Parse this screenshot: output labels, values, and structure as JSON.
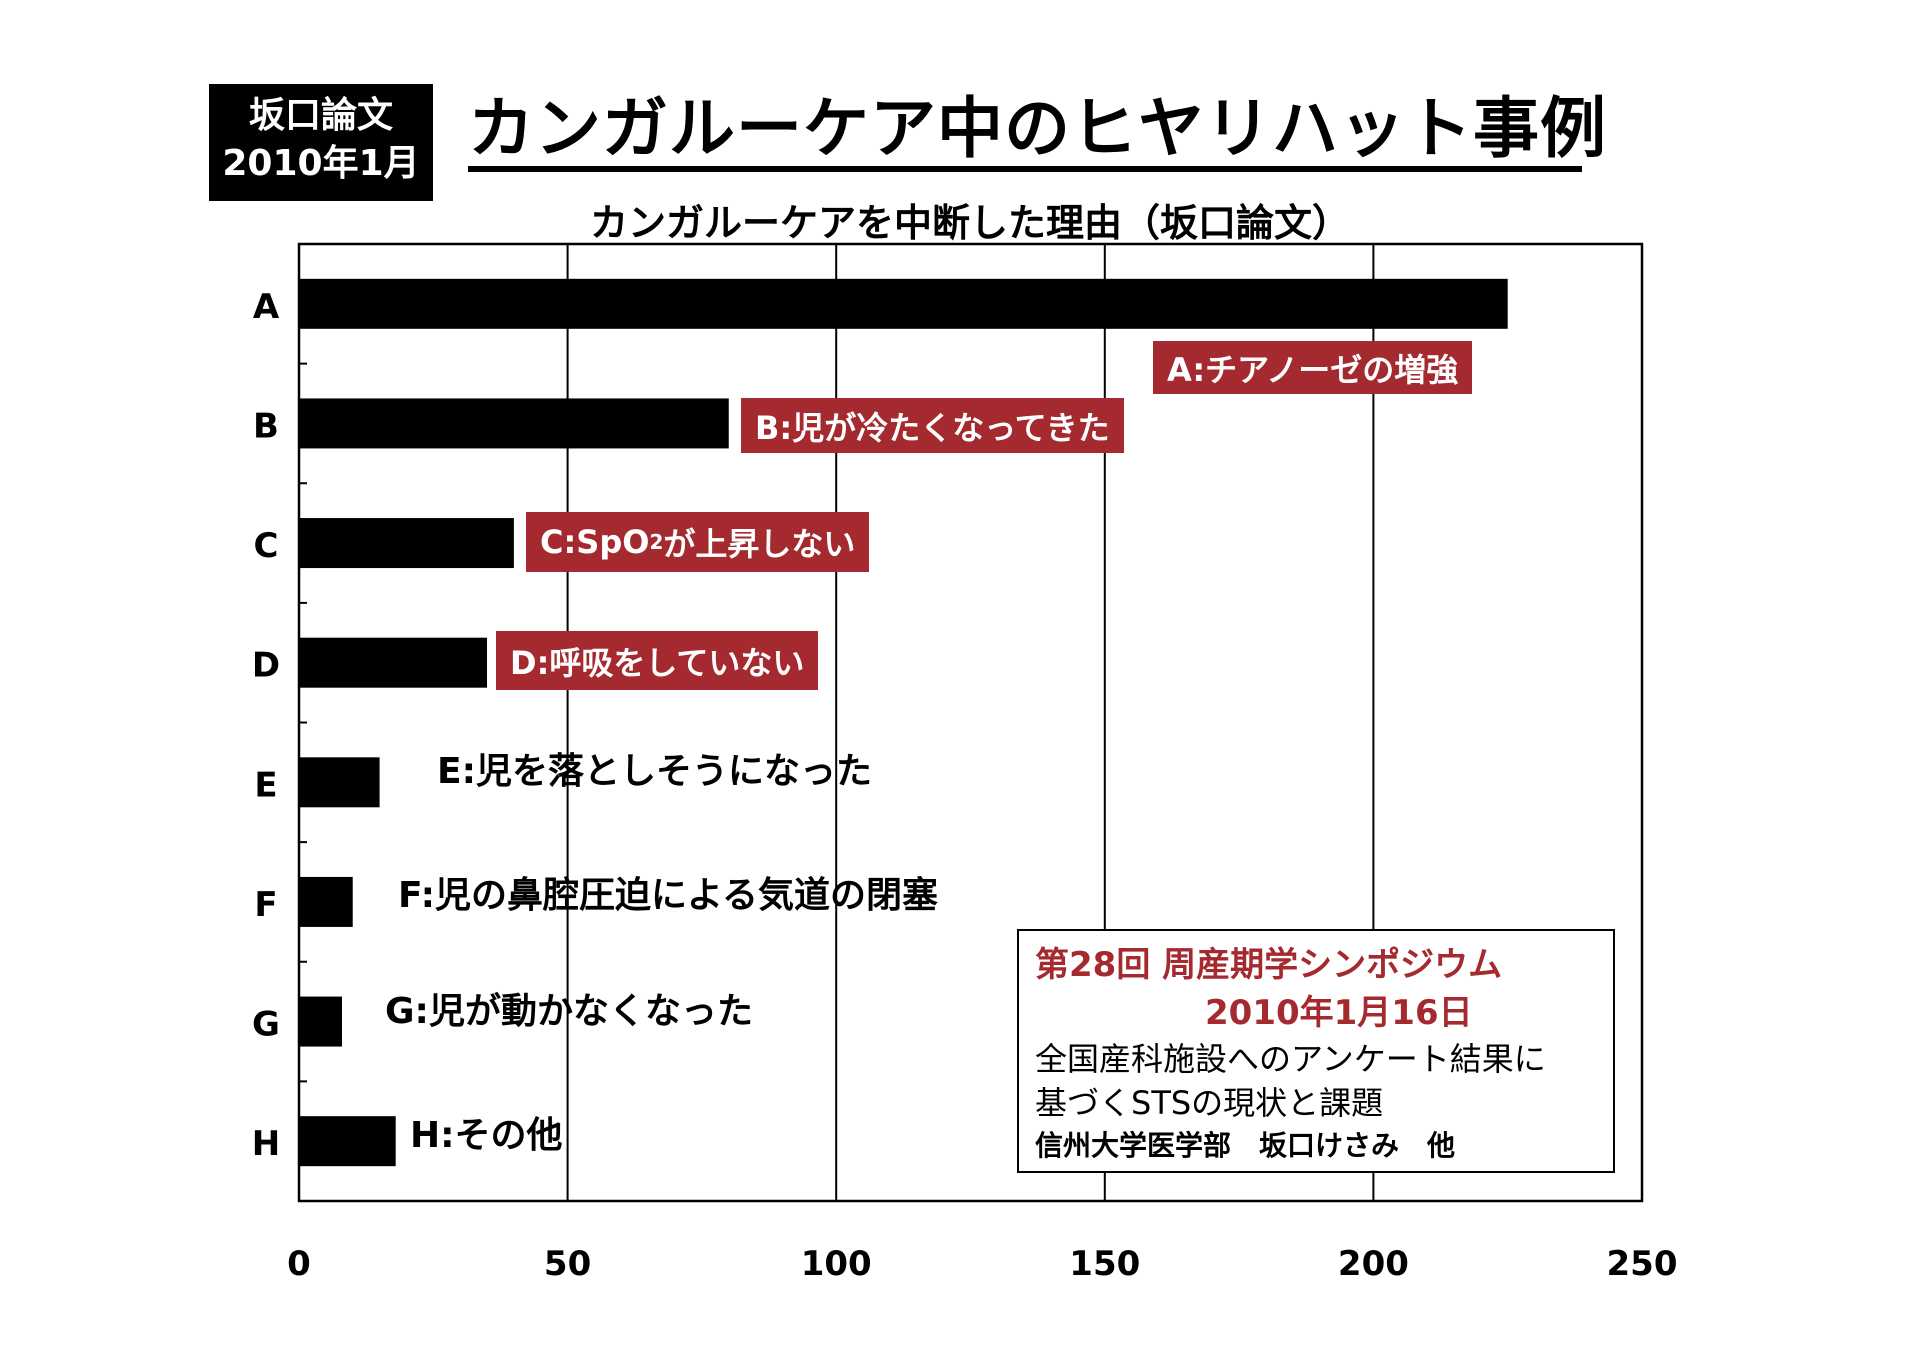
{
  "badge": {
    "line1": "坂口論文",
    "line2": "2010年1月"
  },
  "title": "カンガルーケア中のヒヤリハット事例",
  "chart_data": {
    "type": "bar",
    "orientation": "horizontal",
    "title": "カンガルーケアを中断した理由（坂口論文）",
    "categories": [
      "A",
      "B",
      "C",
      "D",
      "E",
      "F",
      "G",
      "H"
    ],
    "values": [
      225,
      80,
      40,
      35,
      15,
      10,
      8,
      18
    ],
    "xlim": [
      0,
      250
    ],
    "xticks": [
      "0",
      "50",
      "100",
      "150",
      "200",
      "250"
    ],
    "grid": true,
    "bar_color": "#000000",
    "annotations": [
      {
        "text": "A:チアノーゼの増強",
        "style": "red"
      },
      {
        "text": "B:児が冷たくなってきた",
        "style": "red"
      },
      {
        "pre": "C:SpO",
        "sub": "2",
        "post": "が上昇しない",
        "style": "red"
      },
      {
        "text": "D:呼吸をしていない",
        "style": "red"
      },
      {
        "text": "E:児を落としそうになった",
        "style": "plain"
      },
      {
        "text": "F:児の鼻腔圧迫による気道の閉塞",
        "style": "plain"
      },
      {
        "text": "G:児が動かなくなった",
        "style": "plain"
      },
      {
        "text": "H:その他",
        "style": "plain"
      }
    ]
  },
  "info_box": {
    "line1": "第28回 周産期学シンポジウム",
    "line2": "2010年1月16日",
    "line3": "全国産科施設へのアンケート結果に",
    "line4": "基づくSTSの現状と課題",
    "line5": "信州大学医学部　坂口けさみ　他"
  },
  "colors": {
    "accent": "#a52a2f"
  }
}
